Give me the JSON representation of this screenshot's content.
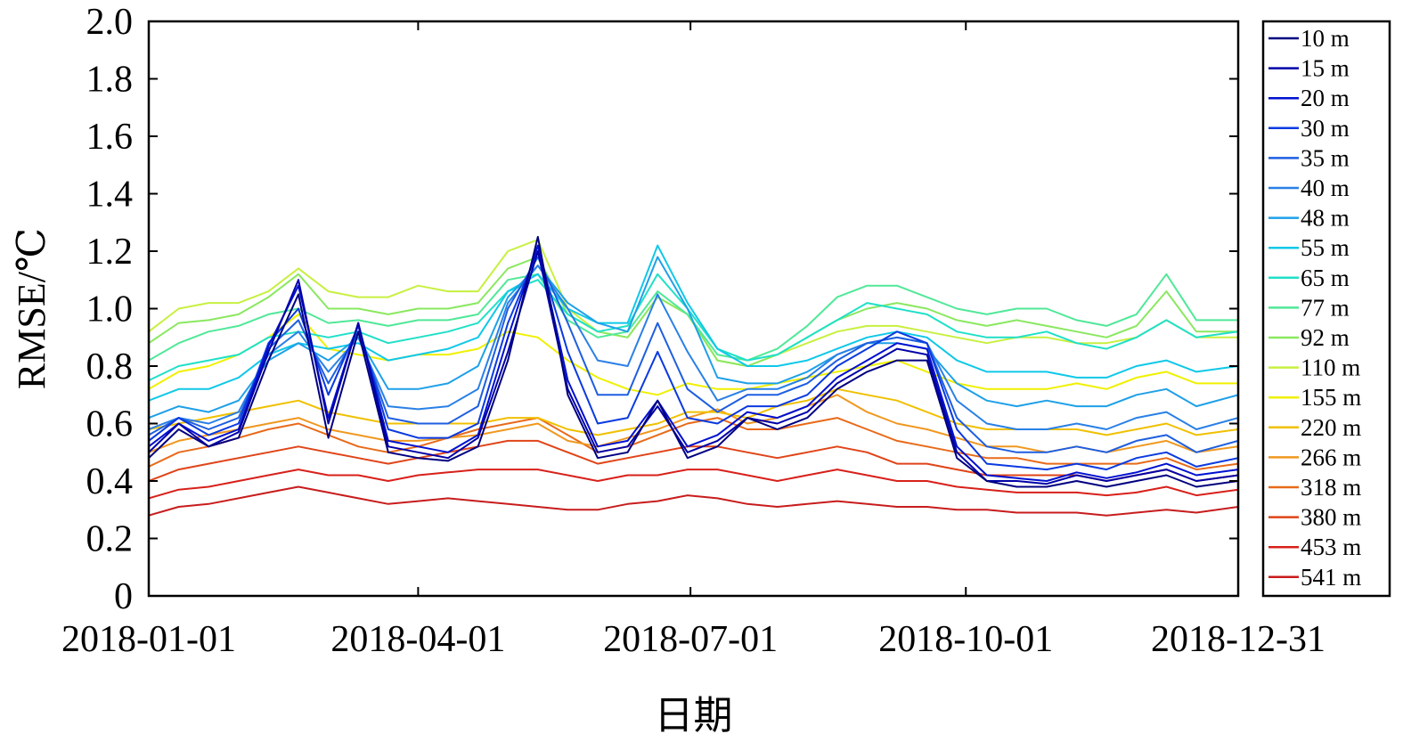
{
  "chart_data": {
    "type": "line",
    "xlabel": "日期",
    "ylabel": "RMSE/℃",
    "ylim": [
      0,
      2.0
    ],
    "yticks": [
      "0",
      "0.2",
      "0.4",
      "0.6",
      "0.8",
      "1.0",
      "1.2",
      "1.4",
      "1.6",
      "1.8",
      "2.0"
    ],
    "xlim": [
      "2018-01-01",
      "2018-12-31"
    ],
    "xticks": [
      "2018-01-01",
      "2018-04-01",
      "2018-07-01",
      "2018-10-01",
      "2018-12-31"
    ],
    "grid": false,
    "legend_position": "right",
    "x": [
      "2018-01-01",
      "2018-01-11",
      "2018-01-21",
      "2018-01-31",
      "2018-02-10",
      "2018-02-20",
      "2018-03-02",
      "2018-03-12",
      "2018-03-22",
      "2018-04-01",
      "2018-04-11",
      "2018-04-21",
      "2018-05-01",
      "2018-05-11",
      "2018-05-21",
      "2018-05-31",
      "2018-06-10",
      "2018-06-20",
      "2018-06-30",
      "2018-07-10",
      "2018-07-20",
      "2018-07-30",
      "2018-08-09",
      "2018-08-19",
      "2018-08-29",
      "2018-09-08",
      "2018-09-18",
      "2018-09-28",
      "2018-10-08",
      "2018-10-18",
      "2018-10-28",
      "2018-11-07",
      "2018-11-17",
      "2018-11-27",
      "2018-12-07",
      "2018-12-17",
      "2018-12-31"
    ],
    "series": [
      {
        "name": "10 m",
        "color": "#000080",
        "values": [
          0.48,
          0.58,
          0.52,
          0.55,
          0.82,
          1.05,
          0.55,
          0.92,
          0.5,
          0.48,
          0.47,
          0.52,
          0.82,
          1.25,
          0.7,
          0.48,
          0.5,
          0.68,
          0.48,
          0.52,
          0.62,
          0.58,
          0.62,
          0.72,
          0.78,
          0.82,
          0.82,
          0.48,
          0.4,
          0.38,
          0.38,
          0.4,
          0.38,
          0.4,
          0.42,
          0.38,
          0.4
        ]
      },
      {
        "name": "15 m",
        "color": "#0000a8",
        "values": [
          0.5,
          0.6,
          0.52,
          0.57,
          0.85,
          1.1,
          0.6,
          0.95,
          0.52,
          0.5,
          0.48,
          0.55,
          0.85,
          1.2,
          0.72,
          0.5,
          0.52,
          0.66,
          0.5,
          0.54,
          0.62,
          0.6,
          0.64,
          0.74,
          0.8,
          0.86,
          0.84,
          0.5,
          0.4,
          0.4,
          0.39,
          0.42,
          0.4,
          0.42,
          0.44,
          0.4,
          0.42
        ]
      },
      {
        "name": "20 m",
        "color": "#0010d0",
        "values": [
          0.52,
          0.6,
          0.54,
          0.58,
          0.87,
          1.08,
          0.62,
          0.95,
          0.54,
          0.52,
          0.5,
          0.56,
          0.9,
          1.22,
          0.75,
          0.52,
          0.54,
          0.68,
          0.52,
          0.56,
          0.64,
          0.62,
          0.66,
          0.76,
          0.82,
          0.88,
          0.86,
          0.52,
          0.42,
          0.41,
          0.4,
          0.43,
          0.41,
          0.43,
          0.46,
          0.42,
          0.44
        ]
      },
      {
        "name": "30 m",
        "color": "#0a3ae0",
        "values": [
          0.54,
          0.62,
          0.56,
          0.6,
          0.88,
          1.0,
          0.7,
          0.94,
          0.58,
          0.55,
          0.55,
          0.6,
          0.95,
          1.2,
          0.85,
          0.6,
          0.62,
          0.85,
          0.62,
          0.6,
          0.66,
          0.66,
          0.7,
          0.8,
          0.86,
          0.92,
          0.88,
          0.58,
          0.46,
          0.45,
          0.44,
          0.46,
          0.44,
          0.48,
          0.5,
          0.45,
          0.48
        ]
      },
      {
        "name": "35 m",
        "color": "#1e5ee0",
        "values": [
          0.56,
          0.62,
          0.58,
          0.62,
          0.86,
          0.96,
          0.74,
          0.92,
          0.62,
          0.6,
          0.6,
          0.66,
          1.0,
          1.18,
          0.95,
          0.7,
          0.7,
          0.95,
          0.72,
          0.64,
          0.7,
          0.7,
          0.74,
          0.82,
          0.88,
          0.9,
          0.88,
          0.62,
          0.52,
          0.5,
          0.5,
          0.52,
          0.5,
          0.54,
          0.56,
          0.5,
          0.54
        ]
      },
      {
        "name": "40 m",
        "color": "#2a80e6",
        "values": [
          0.58,
          0.62,
          0.6,
          0.64,
          0.84,
          0.92,
          0.78,
          0.9,
          0.66,
          0.65,
          0.66,
          0.72,
          1.02,
          1.15,
          1.0,
          0.82,
          0.8,
          1.05,
          0.85,
          0.68,
          0.72,
          0.72,
          0.76,
          0.84,
          0.88,
          0.9,
          0.88,
          0.68,
          0.6,
          0.58,
          0.58,
          0.6,
          0.58,
          0.62,
          0.64,
          0.58,
          0.62
        ]
      },
      {
        "name": "48 m",
        "color": "#1ea0e8",
        "values": [
          0.62,
          0.66,
          0.64,
          0.68,
          0.82,
          0.88,
          0.82,
          0.9,
          0.72,
          0.72,
          0.74,
          0.8,
          1.04,
          1.15,
          1.02,
          0.95,
          0.92,
          1.18,
          1.0,
          0.76,
          0.74,
          0.74,
          0.78,
          0.84,
          0.88,
          0.88,
          0.86,
          0.74,
          0.68,
          0.66,
          0.68,
          0.66,
          0.66,
          0.7,
          0.72,
          0.66,
          0.7
        ]
      },
      {
        "name": "55 m",
        "color": "#10c8e8",
        "values": [
          0.68,
          0.72,
          0.72,
          0.76,
          0.84,
          0.88,
          0.86,
          0.88,
          0.82,
          0.84,
          0.86,
          0.9,
          1.06,
          1.12,
          1.0,
          0.95,
          0.95,
          1.22,
          1.02,
          0.86,
          0.8,
          0.8,
          0.82,
          0.86,
          0.9,
          0.92,
          0.9,
          0.82,
          0.78,
          0.78,
          0.78,
          0.76,
          0.76,
          0.8,
          0.82,
          0.78,
          0.8
        ]
      },
      {
        "name": "65 m",
        "color": "#20e0c8",
        "values": [
          0.75,
          0.8,
          0.82,
          0.84,
          0.9,
          0.92,
          0.9,
          0.92,
          0.88,
          0.9,
          0.92,
          0.95,
          1.06,
          1.1,
          0.98,
          0.92,
          0.94,
          1.12,
          1.0,
          0.86,
          0.82,
          0.84,
          0.9,
          0.96,
          1.02,
          1.0,
          0.98,
          0.92,
          0.9,
          0.9,
          0.92,
          0.88,
          0.86,
          0.9,
          0.96,
          0.9,
          0.92
        ]
      },
      {
        "name": "77 m",
        "color": "#50e898",
        "values": [
          0.82,
          0.88,
          0.92,
          0.94,
          0.98,
          1.0,
          0.95,
          0.96,
          0.94,
          0.96,
          0.96,
          0.98,
          1.1,
          1.12,
          0.96,
          0.9,
          0.92,
          1.06,
          0.98,
          0.84,
          0.82,
          0.86,
          0.94,
          1.04,
          1.08,
          1.08,
          1.04,
          1.0,
          0.98,
          1.0,
          1.0,
          0.96,
          0.94,
          0.98,
          1.12,
          0.96,
          0.96
        ]
      },
      {
        "name": "92 m",
        "color": "#8ae860",
        "values": [
          0.88,
          0.95,
          0.96,
          0.98,
          1.04,
          1.12,
          1.0,
          1.0,
          0.98,
          1.0,
          1.0,
          1.02,
          1.14,
          1.18,
          0.98,
          0.92,
          0.9,
          1.04,
          0.98,
          0.82,
          0.8,
          0.84,
          0.9,
          0.96,
          1.0,
          1.02,
          1.0,
          0.96,
          0.94,
          0.96,
          0.94,
          0.92,
          0.9,
          0.94,
          1.06,
          0.92,
          0.92
        ]
      },
      {
        "name": "110 m",
        "color": "#c8f040",
        "values": [
          0.92,
          1.0,
          1.02,
          1.02,
          1.06,
          1.14,
          1.06,
          1.04,
          1.04,
          1.08,
          1.06,
          1.06,
          1.2,
          1.24,
          1.0,
          0.92,
          0.9,
          1.04,
          0.98,
          0.82,
          0.8,
          0.84,
          0.88,
          0.92,
          0.94,
          0.94,
          0.92,
          0.9,
          0.88,
          0.9,
          0.9,
          0.88,
          0.88,
          0.9,
          0.96,
          0.9,
          0.9
        ]
      },
      {
        "name": "155 m",
        "color": "#f0f000",
        "values": [
          0.72,
          0.78,
          0.8,
          0.84,
          0.9,
          0.98,
          0.86,
          0.84,
          0.82,
          0.84,
          0.84,
          0.86,
          0.92,
          0.9,
          0.82,
          0.76,
          0.72,
          0.7,
          0.74,
          0.72,
          0.72,
          0.74,
          0.76,
          0.78,
          0.8,
          0.82,
          0.78,
          0.74,
          0.72,
          0.72,
          0.72,
          0.74,
          0.72,
          0.76,
          0.78,
          0.74,
          0.74
        ]
      },
      {
        "name": "220 m",
        "color": "#f0c000",
        "values": [
          0.58,
          0.6,
          0.62,
          0.64,
          0.66,
          0.68,
          0.64,
          0.62,
          0.6,
          0.6,
          0.6,
          0.6,
          0.62,
          0.62,
          0.58,
          0.56,
          0.58,
          0.6,
          0.64,
          0.64,
          0.62,
          0.66,
          0.68,
          0.72,
          0.7,
          0.68,
          0.64,
          0.6,
          0.58,
          0.58,
          0.58,
          0.58,
          0.56,
          0.58,
          0.6,
          0.56,
          0.58
        ]
      },
      {
        "name": "266 m",
        "color": "#f09820",
        "values": [
          0.5,
          0.54,
          0.56,
          0.58,
          0.6,
          0.62,
          0.58,
          0.56,
          0.54,
          0.54,
          0.55,
          0.56,
          0.58,
          0.6,
          0.54,
          0.52,
          0.55,
          0.58,
          0.62,
          0.65,
          0.6,
          0.62,
          0.66,
          0.7,
          0.64,
          0.6,
          0.58,
          0.55,
          0.52,
          0.52,
          0.5,
          0.52,
          0.5,
          0.52,
          0.54,
          0.5,
          0.52
        ]
      },
      {
        "name": "318 m",
        "color": "#e86a1a",
        "values": [
          0.45,
          0.5,
          0.52,
          0.55,
          0.58,
          0.6,
          0.56,
          0.52,
          0.5,
          0.52,
          0.55,
          0.58,
          0.6,
          0.62,
          0.56,
          0.5,
          0.52,
          0.56,
          0.6,
          0.62,
          0.58,
          0.58,
          0.6,
          0.62,
          0.58,
          0.54,
          0.52,
          0.5,
          0.48,
          0.48,
          0.46,
          0.46,
          0.46,
          0.46,
          0.48,
          0.44,
          0.46
        ]
      },
      {
        "name": "380 m",
        "color": "#e04418",
        "values": [
          0.4,
          0.44,
          0.46,
          0.48,
          0.5,
          0.52,
          0.5,
          0.48,
          0.46,
          0.48,
          0.5,
          0.52,
          0.54,
          0.54,
          0.5,
          0.46,
          0.48,
          0.5,
          0.52,
          0.52,
          0.5,
          0.48,
          0.5,
          0.52,
          0.5,
          0.46,
          0.46,
          0.44,
          0.42,
          0.42,
          0.42,
          0.42,
          0.4,
          0.42,
          0.44,
          0.4,
          0.42
        ]
      },
      {
        "name": "453 m",
        "color": "#d8201a",
        "values": [
          0.34,
          0.37,
          0.38,
          0.4,
          0.42,
          0.44,
          0.42,
          0.42,
          0.4,
          0.42,
          0.43,
          0.44,
          0.44,
          0.44,
          0.42,
          0.4,
          0.42,
          0.42,
          0.44,
          0.44,
          0.42,
          0.4,
          0.42,
          0.44,
          0.42,
          0.4,
          0.4,
          0.38,
          0.37,
          0.36,
          0.36,
          0.36,
          0.35,
          0.36,
          0.38,
          0.35,
          0.37
        ]
      },
      {
        "name": "541 m",
        "color": "#c81c1c",
        "values": [
          0.28,
          0.31,
          0.32,
          0.34,
          0.36,
          0.38,
          0.36,
          0.34,
          0.32,
          0.33,
          0.34,
          0.33,
          0.32,
          0.31,
          0.3,
          0.3,
          0.32,
          0.33,
          0.35,
          0.34,
          0.32,
          0.31,
          0.32,
          0.33,
          0.32,
          0.31,
          0.31,
          0.3,
          0.3,
          0.29,
          0.29,
          0.29,
          0.28,
          0.29,
          0.3,
          0.29,
          0.31
        ]
      }
    ]
  }
}
